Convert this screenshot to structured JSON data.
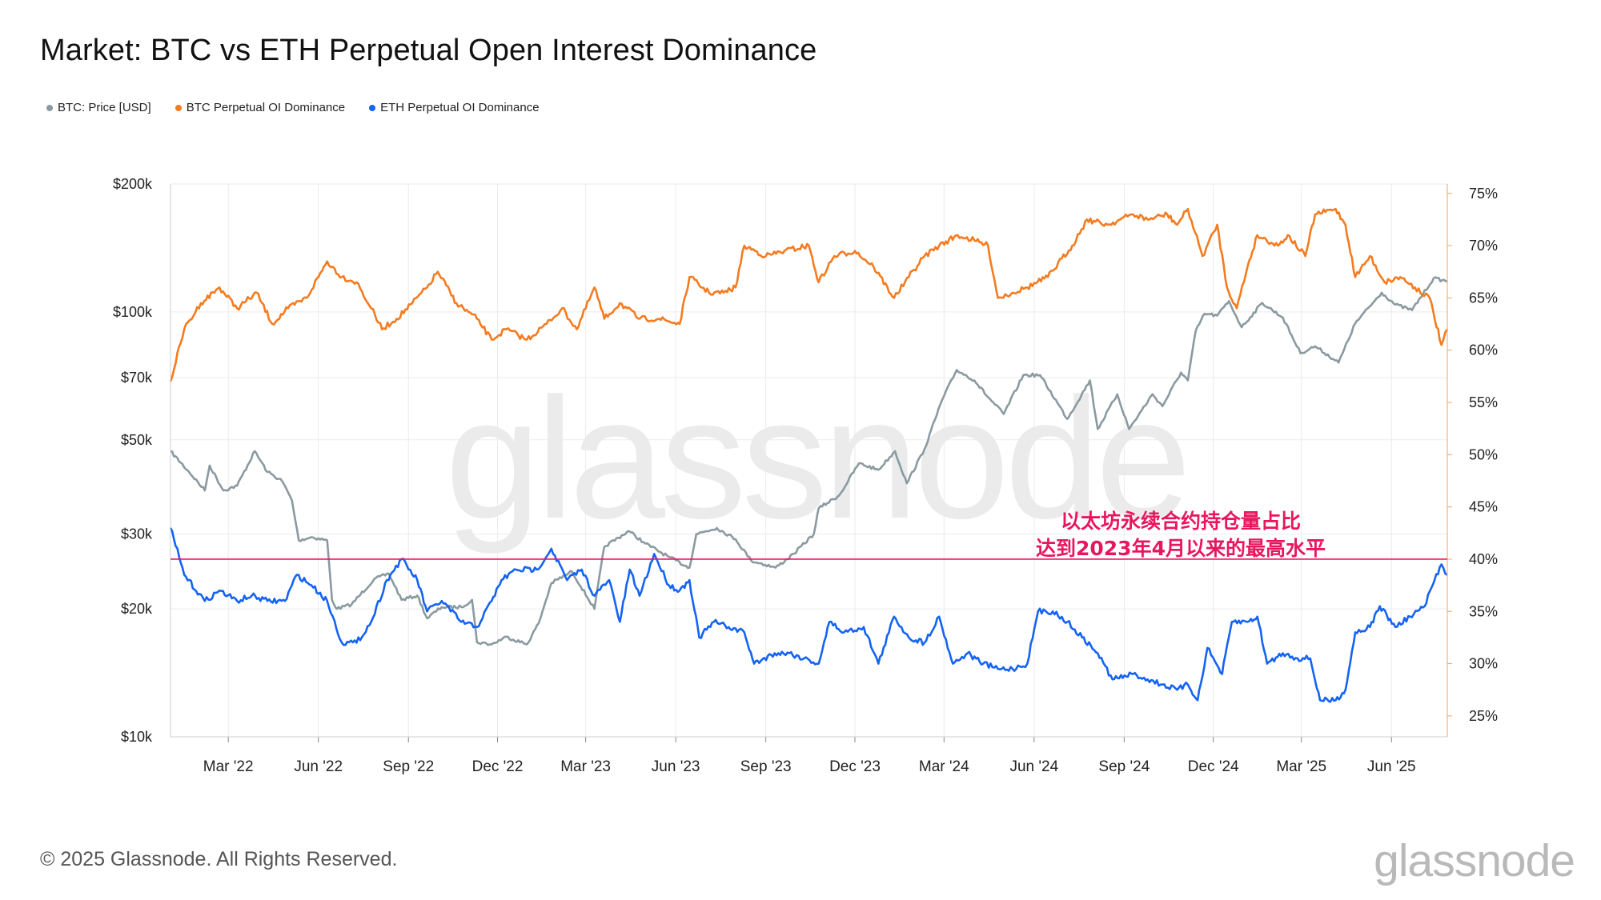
{
  "title": "Market: BTC vs ETH Perpetual Open Interest Dominance",
  "footer": {
    "copyright": "© 2025 Glassnode. All Rights Reserved.",
    "logo": "glassnode"
  },
  "watermark": "glassnode",
  "chart_data": {
    "type": "line",
    "title": "Market: BTC vs ETH Perpetual Open Interest Dominance",
    "legend_position": "top-left",
    "grid": true,
    "x_range": [
      "2022-01-01",
      "2025-07-28"
    ],
    "x_ticks": [
      "Mar '22",
      "Jun '22",
      "Sep '22",
      "Dec '22",
      "Mar '23",
      "Jun '23",
      "Sep '23",
      "Dec '23",
      "Mar '24",
      "Jun '24",
      "Sep '24",
      "Dec '24",
      "Mar '25",
      "Jun '25"
    ],
    "y_left": {
      "scale": "log",
      "range": [
        10000,
        200000
      ],
      "ticks": [
        "$200k",
        "$100k",
        "$70k",
        "$50k",
        "$30k",
        "$20k",
        "$10k"
      ],
      "tick_values": [
        200000,
        100000,
        70000,
        50000,
        30000,
        20000,
        10000
      ]
    },
    "y_right": {
      "scale": "linear",
      "range": [
        23,
        75.9
      ],
      "ticks": [
        "75%",
        "70%",
        "65%",
        "60%",
        "55%",
        "50%",
        "45%",
        "40%",
        "35%",
        "30%",
        "25%"
      ],
      "tick_values": [
        75,
        70,
        65,
        60,
        55,
        50,
        45,
        40,
        35,
        30,
        25
      ]
    },
    "annotation": {
      "line1": "以太坊永续合约持仓量占比",
      "line2": "达到2023年4月以来的最高水平",
      "reference_value": 40,
      "color": "#e8175d"
    },
    "series": [
      {
        "name": "BTC: Price [USD]",
        "axis": "left",
        "color": "#8a9aa0",
        "points": [
          [
            "2022-01-01",
            47000
          ],
          [
            "2022-01-20",
            42000
          ],
          [
            "2022-02-05",
            38000
          ],
          [
            "2022-02-10",
            43500
          ],
          [
            "2022-02-24",
            38000
          ],
          [
            "2022-03-10",
            39000
          ],
          [
            "2022-03-28",
            47000
          ],
          [
            "2022-04-10",
            42000
          ],
          [
            "2022-04-25",
            40000
          ],
          [
            "2022-05-05",
            36000
          ],
          [
            "2022-05-12",
            29000
          ],
          [
            "2022-05-25",
            29500
          ],
          [
            "2022-06-10",
            29000
          ],
          [
            "2022-06-15",
            21000
          ],
          [
            "2022-06-20",
            20000
          ],
          [
            "2022-07-05",
            20500
          ],
          [
            "2022-07-28",
            23500
          ],
          [
            "2022-08-12",
            24200
          ],
          [
            "2022-08-25",
            21000
          ],
          [
            "2022-09-10",
            21500
          ],
          [
            "2022-09-20",
            19000
          ],
          [
            "2022-10-05",
            20200
          ],
          [
            "2022-10-25",
            20200
          ],
          [
            "2022-11-05",
            21000
          ],
          [
            "2022-11-10",
            16700
          ],
          [
            "2022-11-25",
            16500
          ],
          [
            "2022-12-10",
            17200
          ],
          [
            "2022-12-31",
            16500
          ],
          [
            "2023-01-12",
            18500
          ],
          [
            "2023-01-25",
            23000
          ],
          [
            "2023-02-15",
            24500
          ],
          [
            "2023-03-10",
            20000
          ],
          [
            "2023-03-20",
            28000
          ],
          [
            "2023-04-14",
            30500
          ],
          [
            "2023-05-01",
            28500
          ],
          [
            "2023-05-25",
            26500
          ],
          [
            "2023-06-15",
            25000
          ],
          [
            "2023-06-22",
            30000
          ],
          [
            "2023-07-13",
            31000
          ],
          [
            "2023-08-01",
            29200
          ],
          [
            "2023-08-17",
            26000
          ],
          [
            "2023-09-11",
            25000
          ],
          [
            "2023-09-30",
            27000
          ],
          [
            "2023-10-20",
            30000
          ],
          [
            "2023-10-25",
            34500
          ],
          [
            "2023-11-15",
            37000
          ],
          [
            "2023-12-05",
            44000
          ],
          [
            "2023-12-25",
            42500
          ],
          [
            "2024-01-11",
            47000
          ],
          [
            "2024-01-23",
            39500
          ],
          [
            "2024-02-10",
            47500
          ],
          [
            "2024-02-28",
            62000
          ],
          [
            "2024-03-14",
            73000
          ],
          [
            "2024-04-01",
            69000
          ],
          [
            "2024-04-15",
            63000
          ],
          [
            "2024-05-01",
            57500
          ],
          [
            "2024-05-21",
            71000
          ],
          [
            "2024-06-07",
            71000
          ],
          [
            "2024-06-25",
            61000
          ],
          [
            "2024-07-05",
            56000
          ],
          [
            "2024-07-28",
            69000
          ],
          [
            "2024-08-05",
            53000
          ],
          [
            "2024-08-25",
            64000
          ],
          [
            "2024-09-06",
            53000
          ],
          [
            "2024-09-30",
            64000
          ],
          [
            "2024-10-10",
            60000
          ],
          [
            "2024-10-29",
            72000
          ],
          [
            "2024-11-05",
            69000
          ],
          [
            "2024-11-13",
            90000
          ],
          [
            "2024-11-22",
            99000
          ],
          [
            "2024-12-05",
            98000
          ],
          [
            "2024-12-17",
            106000
          ],
          [
            "2024-12-30",
            92000
          ],
          [
            "2025-01-20",
            105000
          ],
          [
            "2025-02-10",
            97000
          ],
          [
            "2025-02-28",
            80000
          ],
          [
            "2025-03-15",
            83000
          ],
          [
            "2025-04-08",
            76000
          ],
          [
            "2025-04-25",
            94000
          ],
          [
            "2025-05-22",
            111000
          ],
          [
            "2025-06-05",
            104000
          ],
          [
            "2025-06-22",
            101000
          ],
          [
            "2025-07-14",
            120000
          ],
          [
            "2025-07-28",
            118000
          ]
        ]
      },
      {
        "name": "BTC Perpetual OI Dominance",
        "axis": "right",
        "color": "#f47b20",
        "points": [
          [
            "2022-01-01",
            57
          ],
          [
            "2022-01-15",
            62
          ],
          [
            "2022-02-01",
            64.5
          ],
          [
            "2022-02-20",
            66
          ],
          [
            "2022-03-10",
            64
          ],
          [
            "2022-03-30",
            65.5
          ],
          [
            "2022-04-15",
            62.5
          ],
          [
            "2022-05-01",
            64
          ],
          [
            "2022-05-20",
            65
          ],
          [
            "2022-06-10",
            68.5
          ],
          [
            "2022-06-25",
            67
          ],
          [
            "2022-07-10",
            66.5
          ],
          [
            "2022-07-25",
            64
          ],
          [
            "2022-08-05",
            62
          ],
          [
            "2022-08-20",
            63
          ],
          [
            "2022-09-05",
            64.5
          ],
          [
            "2022-09-20",
            66
          ],
          [
            "2022-10-01",
            67.5
          ],
          [
            "2022-10-20",
            64.5
          ],
          [
            "2022-11-10",
            63
          ],
          [
            "2022-11-25",
            61
          ],
          [
            "2022-12-10",
            62
          ],
          [
            "2022-12-31",
            61
          ],
          [
            "2023-01-20",
            62.5
          ],
          [
            "2023-02-05",
            64
          ],
          [
            "2023-02-20",
            62
          ],
          [
            "2023-03-10",
            66
          ],
          [
            "2023-03-20",
            63
          ],
          [
            "2023-04-05",
            64.5
          ],
          [
            "2023-04-25",
            63
          ],
          [
            "2023-05-15",
            63
          ],
          [
            "2023-06-05",
            62.5
          ],
          [
            "2023-06-15",
            67
          ],
          [
            "2023-07-05",
            65.5
          ],
          [
            "2023-07-20",
            65.5
          ],
          [
            "2023-08-01",
            66
          ],
          [
            "2023-08-10",
            70
          ],
          [
            "2023-09-01",
            69
          ],
          [
            "2023-09-20",
            69.5
          ],
          [
            "2023-10-15",
            70
          ],
          [
            "2023-10-25",
            66.5
          ],
          [
            "2023-11-10",
            69
          ],
          [
            "2023-12-01",
            69.5
          ],
          [
            "2023-12-20",
            68
          ],
          [
            "2024-01-10",
            65
          ],
          [
            "2024-01-25",
            67
          ],
          [
            "2024-02-10",
            69
          ],
          [
            "2024-02-25",
            70
          ],
          [
            "2024-03-15",
            71
          ],
          [
            "2024-04-01",
            70.5
          ],
          [
            "2024-04-15",
            70
          ],
          [
            "2024-04-25",
            65
          ],
          [
            "2024-05-10",
            65.5
          ],
          [
            "2024-05-25",
            66
          ],
          [
            "2024-06-15",
            67
          ],
          [
            "2024-07-10",
            70
          ],
          [
            "2024-07-25",
            72.5
          ],
          [
            "2024-08-15",
            72
          ],
          [
            "2024-09-10",
            73
          ],
          [
            "2024-09-25",
            72.5
          ],
          [
            "2024-10-15",
            73
          ],
          [
            "2024-10-25",
            72
          ],
          [
            "2024-11-05",
            73.5
          ],
          [
            "2024-11-20",
            69
          ],
          [
            "2024-12-05",
            72
          ],
          [
            "2024-12-15",
            66
          ],
          [
            "2024-12-25",
            64
          ],
          [
            "2025-01-05",
            68
          ],
          [
            "2025-01-15",
            71
          ],
          [
            "2025-02-05",
            70
          ],
          [
            "2025-02-15",
            71
          ],
          [
            "2025-03-05",
            69
          ],
          [
            "2025-03-15",
            73
          ],
          [
            "2025-04-05",
            73.5
          ],
          [
            "2025-04-15",
            72
          ],
          [
            "2025-04-25",
            67
          ],
          [
            "2025-05-10",
            69
          ],
          [
            "2025-05-25",
            66.5
          ],
          [
            "2025-06-10",
            67
          ],
          [
            "2025-06-25",
            66
          ],
          [
            "2025-07-10",
            65
          ],
          [
            "2025-07-22",
            60.5
          ],
          [
            "2025-07-28",
            62
          ]
        ]
      },
      {
        "name": "ETH Perpetual OI Dominance",
        "axis": "right",
        "color": "#1463f3",
        "points": [
          [
            "2022-01-01",
            43
          ],
          [
            "2022-01-15",
            38.5
          ],
          [
            "2022-02-05",
            36
          ],
          [
            "2022-02-20",
            37
          ],
          [
            "2022-03-10",
            36
          ],
          [
            "2022-03-25",
            36.5
          ],
          [
            "2022-04-10",
            36
          ],
          [
            "2022-04-28",
            36
          ],
          [
            "2022-05-10",
            38.5
          ],
          [
            "2022-05-25",
            37.5
          ],
          [
            "2022-06-10",
            36
          ],
          [
            "2022-06-25",
            32
          ],
          [
            "2022-07-10",
            32
          ],
          [
            "2022-07-25",
            34
          ],
          [
            "2022-08-10",
            38
          ],
          [
            "2022-08-25",
            40
          ],
          [
            "2022-09-10",
            38
          ],
          [
            "2022-09-20",
            35
          ],
          [
            "2022-10-05",
            36
          ],
          [
            "2022-10-25",
            34
          ],
          [
            "2022-11-10",
            33.5
          ],
          [
            "2022-11-25",
            36
          ],
          [
            "2022-12-05",
            38
          ],
          [
            "2022-12-20",
            39
          ],
          [
            "2023-01-10",
            39
          ],
          [
            "2023-01-25",
            41
          ],
          [
            "2023-02-10",
            38
          ],
          [
            "2023-02-25",
            39
          ],
          [
            "2023-03-10",
            36.5
          ],
          [
            "2023-03-25",
            38
          ],
          [
            "2023-04-05",
            34
          ],
          [
            "2023-04-15",
            39
          ],
          [
            "2023-04-25",
            36.5
          ],
          [
            "2023-05-10",
            40.5
          ],
          [
            "2023-05-25",
            37.5
          ],
          [
            "2023-06-05",
            37
          ],
          [
            "2023-06-15",
            38
          ],
          [
            "2023-06-25",
            32.5
          ],
          [
            "2023-07-10",
            34
          ],
          [
            "2023-07-25",
            33.5
          ],
          [
            "2023-08-10",
            33
          ],
          [
            "2023-08-20",
            30
          ],
          [
            "2023-09-10",
            31
          ],
          [
            "2023-09-25",
            31
          ],
          [
            "2023-10-10",
            30.5
          ],
          [
            "2023-10-25",
            30
          ],
          [
            "2023-11-05",
            34
          ],
          [
            "2023-11-20",
            33
          ],
          [
            "2023-12-10",
            33.5
          ],
          [
            "2023-12-25",
            30
          ],
          [
            "2024-01-10",
            34.5
          ],
          [
            "2024-01-25",
            32.5
          ],
          [
            "2024-02-10",
            32
          ],
          [
            "2024-02-25",
            34.5
          ],
          [
            "2024-03-10",
            30
          ],
          [
            "2024-03-25",
            31
          ],
          [
            "2024-04-10",
            30
          ],
          [
            "2024-04-25",
            29.5
          ],
          [
            "2024-05-10",
            29.5
          ],
          [
            "2024-05-25",
            30
          ],
          [
            "2024-06-05",
            35
          ],
          [
            "2024-06-20",
            35
          ],
          [
            "2024-07-05",
            34
          ],
          [
            "2024-07-20",
            32.5
          ],
          [
            "2024-08-05",
            31
          ],
          [
            "2024-08-20",
            28.5
          ],
          [
            "2024-09-10",
            29
          ],
          [
            "2024-09-25",
            28.5
          ],
          [
            "2024-10-10",
            28
          ],
          [
            "2024-10-25",
            27.5
          ],
          [
            "2024-11-05",
            28
          ],
          [
            "2024-11-15",
            26.5
          ],
          [
            "2024-11-25",
            31.5
          ],
          [
            "2024-12-10",
            29
          ],
          [
            "2024-12-20",
            34
          ],
          [
            "2025-01-05",
            34
          ],
          [
            "2025-01-15",
            34.5
          ],
          [
            "2025-01-25",
            30
          ],
          [
            "2025-02-10",
            31
          ],
          [
            "2025-02-25",
            30.5
          ],
          [
            "2025-03-10",
            30.5
          ],
          [
            "2025-03-20",
            26.5
          ],
          [
            "2025-04-05",
            26.5
          ],
          [
            "2025-04-15",
            27.5
          ],
          [
            "2025-04-25",
            33
          ],
          [
            "2025-05-10",
            33.5
          ],
          [
            "2025-05-20",
            35.5
          ],
          [
            "2025-06-05",
            33.5
          ],
          [
            "2025-06-20",
            34.5
          ],
          [
            "2025-07-05",
            35.5
          ],
          [
            "2025-07-15",
            38
          ],
          [
            "2025-07-22",
            39.5
          ],
          [
            "2025-07-28",
            38.5
          ]
        ]
      }
    ]
  }
}
